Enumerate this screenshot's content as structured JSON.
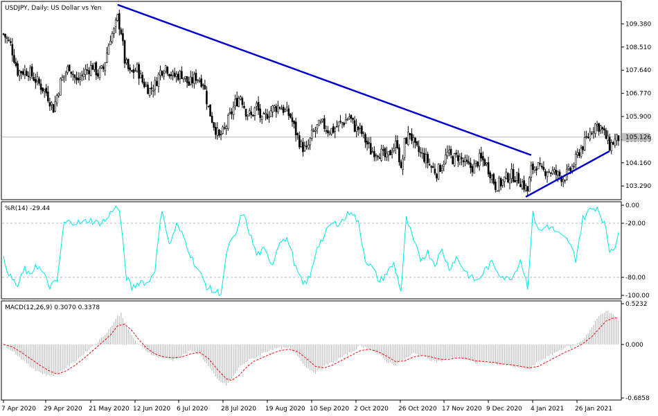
{
  "colors": {
    "background": "#ffffff",
    "frame": "#000000",
    "candle_up": "#ffffff",
    "candle_down": "#000000",
    "trendline": "#0000cd",
    "williams": "#00e5ee",
    "macd_hist": "#c0c0c0",
    "macd_signal": "#ff0000",
    "level_line": "#a0a0a0",
    "current_price_bg": "#c0c0c0"
  },
  "chart_data": {
    "type": "candlestick",
    "symbol_title": "USDJPY, Daily:  US Dollar vs Yen",
    "current_price_label": "105.126",
    "current_price": 105.126,
    "x_ticks": [
      "7 Apr 2020",
      "29 Apr 2020",
      "21 May 2020",
      "12 Jun 2020",
      "6 Jul 2020",
      "28 Jul 2020",
      "19 Aug 2020",
      "10 Sep 2020",
      "2 Oct 2020",
      "26 Oct 2020",
      "17 Nov 2020",
      "9 Dec 2020",
      "4 Jan 2021",
      "26 Jan 2021"
    ],
    "price_panel": {
      "ylim": [
        102.8,
        110.2
      ],
      "y_ticks": [
        "109.380",
        "108.510",
        "107.640",
        "106.770",
        "105.900",
        "105.030",
        "104.160",
        "103.290"
      ],
      "anchors": [
        [
          0,
          109.0
        ],
        [
          4,
          108.6
        ],
        [
          8,
          107.6
        ],
        [
          14,
          107.6
        ],
        [
          19,
          107.2
        ],
        [
          24,
          106.8
        ],
        [
          28,
          106.2
        ],
        [
          32,
          107.2
        ],
        [
          37,
          107.8
        ],
        [
          41,
          107.2
        ],
        [
          46,
          107.6
        ],
        [
          50,
          107.8
        ],
        [
          53,
          107.5
        ],
        [
          56,
          107.7
        ],
        [
          60,
          108.9
        ],
        [
          62,
          109.1
        ],
        [
          64,
          109.6
        ],
        [
          66,
          109.1
        ],
        [
          68,
          108.0
        ],
        [
          71,
          107.5
        ],
        [
          75,
          107.7
        ],
        [
          78,
          107.2
        ],
        [
          82,
          106.9
        ],
        [
          85,
          107.1
        ],
        [
          88,
          107.6
        ],
        [
          91,
          107.8
        ],
        [
          95,
          107.4
        ],
        [
          100,
          107.5
        ],
        [
          104,
          107.1
        ],
        [
          108,
          107.4
        ],
        [
          112,
          107.2
        ],
        [
          115,
          106.2
        ],
        [
          118,
          105.6
        ],
        [
          121,
          105.1
        ],
        [
          124,
          105.4
        ],
        [
          127,
          105.9
        ],
        [
          130,
          106.4
        ],
        [
          133,
          106.7
        ],
        [
          136,
          106.1
        ],
        [
          139,
          105.9
        ],
        [
          142,
          106.3
        ],
        [
          145,
          105.7
        ],
        [
          148,
          106.0
        ],
        [
          151,
          106.2
        ],
        [
          155,
          106.3
        ],
        [
          158,
          106.1
        ],
        [
          161,
          105.9
        ],
        [
          164,
          105.3
        ],
        [
          167,
          104.8
        ],
        [
          170,
          104.6
        ],
        [
          173,
          105.2
        ],
        [
          176,
          105.5
        ],
        [
          179,
          105.6
        ],
        [
          182,
          105.4
        ],
        [
          185,
          105.4
        ],
        [
          188,
          105.6
        ],
        [
          191,
          105.7
        ],
        [
          194,
          105.9
        ],
        [
          197,
          105.5
        ],
        [
          200,
          105.4
        ],
        [
          203,
          105.0
        ],
        [
          206,
          104.6
        ],
        [
          209,
          104.6
        ],
        [
          212,
          104.5
        ],
        [
          215,
          104.3
        ],
        [
          218,
          104.7
        ],
        [
          221,
          104.9
        ],
        [
          223,
          103.8
        ],
        [
          225,
          104.9
        ],
        [
          228,
          105.3
        ],
        [
          231,
          104.7
        ],
        [
          234,
          104.5
        ],
        [
          237,
          104.3
        ],
        [
          240,
          104.0
        ],
        [
          243,
          103.8
        ],
        [
          246,
          104.1
        ],
        [
          249,
          104.5
        ],
        [
          252,
          104.3
        ],
        [
          255,
          104.4
        ],
        [
          258,
          104.2
        ],
        [
          261,
          104.0
        ],
        [
          264,
          104.0
        ],
        [
          267,
          104.3
        ],
        [
          270,
          104.2
        ],
        [
          273,
          103.8
        ],
        [
          276,
          103.3
        ],
        [
          279,
          103.4
        ],
        [
          282,
          103.6
        ],
        [
          285,
          103.7
        ],
        [
          288,
          103.6
        ],
        [
          291,
          103.4
        ],
        [
          294,
          103.1
        ],
        [
          296,
          103.9
        ],
        [
          299,
          104.1
        ],
        [
          302,
          103.8
        ],
        [
          305,
          103.9
        ],
        [
          308,
          103.8
        ],
        [
          311,
          103.7
        ],
        [
          314,
          103.6
        ],
        [
          317,
          103.8
        ],
        [
          320,
          104.1
        ],
        [
          323,
          104.6
        ],
        [
          326,
          104.9
        ],
        [
          329,
          105.3
        ],
        [
          332,
          105.6
        ],
        [
          335,
          105.5
        ],
        [
          338,
          105.1
        ],
        [
          340,
          104.8
        ],
        [
          343,
          105.0
        ],
        [
          345,
          105.1
        ]
      ],
      "trendlines": [
        {
          "from": [
            64,
            110.1
          ],
          "to": [
            296,
            104.45
          ]
        },
        {
          "from": [
            293,
            102.88
          ],
          "to": [
            340,
            104.6
          ]
        }
      ]
    },
    "wpr_panel": {
      "label": "%R(14) -29.44",
      "ylim": [
        -100,
        0
      ],
      "y_ticks": [
        "0.00",
        "-20.00",
        "-80.00",
        "-100.00"
      ],
      "levels": [
        -20,
        -80
      ],
      "anchors": [
        [
          0,
          -60
        ],
        [
          4,
          -80
        ],
        [
          8,
          -90
        ],
        [
          12,
          -70
        ],
        [
          15,
          -80
        ],
        [
          18,
          -65
        ],
        [
          22,
          -75
        ],
        [
          26,
          -90
        ],
        [
          30,
          -85
        ],
        [
          34,
          -20
        ],
        [
          38,
          -18
        ],
        [
          44,
          -20
        ],
        [
          48,
          -16
        ],
        [
          53,
          -20
        ],
        [
          58,
          -16
        ],
        [
          62,
          -2
        ],
        [
          65,
          -5
        ],
        [
          69,
          -80
        ],
        [
          72,
          -92
        ],
        [
          77,
          -84
        ],
        [
          81,
          -87
        ],
        [
          85,
          -70
        ],
        [
          89,
          -3
        ],
        [
          93,
          -45
        ],
        [
          97,
          -22
        ],
        [
          101,
          -35
        ],
        [
          106,
          -60
        ],
        [
          110,
          -75
        ],
        [
          114,
          -90
        ],
        [
          118,
          -96
        ],
        [
          122,
          -97
        ],
        [
          126,
          -45
        ],
        [
          130,
          -35
        ],
        [
          134,
          -8
        ],
        [
          138,
          -30
        ],
        [
          142,
          -55
        ],
        [
          146,
          -50
        ],
        [
          151,
          -65
        ],
        [
          155,
          -38
        ],
        [
          160,
          -40
        ],
        [
          164,
          -70
        ],
        [
          168,
          -88
        ],
        [
          172,
          -80
        ],
        [
          176,
          -45
        ],
        [
          180,
          -35
        ],
        [
          183,
          -22
        ],
        [
          187,
          -20
        ],
        [
          191,
          -16
        ],
        [
          195,
          -5
        ],
        [
          199,
          -20
        ],
        [
          203,
          -60
        ],
        [
          207,
          -70
        ],
        [
          211,
          -85
        ],
        [
          215,
          -75
        ],
        [
          219,
          -65
        ],
        [
          223,
          -95
        ],
        [
          226,
          -15
        ],
        [
          230,
          -40
        ],
        [
          234,
          -60
        ],
        [
          238,
          -52
        ],
        [
          242,
          -65
        ],
        [
          246,
          -50
        ],
        [
          250,
          -70
        ],
        [
          254,
          -58
        ],
        [
          258,
          -70
        ],
        [
          262,
          -80
        ],
        [
          266,
          -84
        ],
        [
          270,
          -72
        ],
        [
          274,
          -64
        ],
        [
          278,
          -75
        ],
        [
          282,
          -82
        ],
        [
          286,
          -78
        ],
        [
          290,
          -60
        ],
        [
          294,
          -90
        ],
        [
          297,
          -10
        ],
        [
          301,
          -30
        ],
        [
          305,
          -22
        ],
        [
          309,
          -28
        ],
        [
          313,
          -35
        ],
        [
          317,
          -40
        ],
        [
          321,
          -60
        ],
        [
          325,
          -15
        ],
        [
          329,
          -5
        ],
        [
          333,
          -2
        ],
        [
          337,
          -20
        ],
        [
          340,
          -50
        ],
        [
          343,
          -45
        ],
        [
          345,
          -30
        ]
      ]
    },
    "macd_panel": {
      "label": "MACD(12,26,9) 0.3070 0.3378",
      "ylim": [
        -0.6858,
        0.5232
      ],
      "y_ticks": [
        "0.5232",
        "0.000",
        "-0.6858"
      ],
      "main_anchors": [
        [
          0,
          0.0
        ],
        [
          5,
          -0.08
        ],
        [
          10,
          -0.18
        ],
        [
          15,
          -0.28
        ],
        [
          20,
          -0.35
        ],
        [
          25,
          -0.4
        ],
        [
          30,
          -0.38
        ],
        [
          35,
          -0.3
        ],
        [
          40,
          -0.22
        ],
        [
          45,
          -0.12
        ],
        [
          50,
          -0.02
        ],
        [
          55,
          0.08
        ],
        [
          60,
          0.22
        ],
        [
          64,
          0.36
        ],
        [
          66,
          0.4
        ],
        [
          70,
          0.18
        ],
        [
          75,
          0.02
        ],
        [
          80,
          -0.08
        ],
        [
          85,
          -0.15
        ],
        [
          90,
          -0.18
        ],
        [
          95,
          -0.2
        ],
        [
          100,
          -0.15
        ],
        [
          105,
          -0.08
        ],
        [
          110,
          -0.12
        ],
        [
          115,
          -0.28
        ],
        [
          120,
          -0.45
        ],
        [
          125,
          -0.52
        ],
        [
          128,
          -0.45
        ],
        [
          132,
          -0.3
        ],
        [
          136,
          -0.22
        ],
        [
          140,
          -0.18
        ],
        [
          145,
          -0.12
        ],
        [
          150,
          -0.06
        ],
        [
          155,
          -0.05
        ],
        [
          160,
          -0.05
        ],
        [
          165,
          -0.14
        ],
        [
          170,
          -0.3
        ],
        [
          175,
          -0.36
        ],
        [
          180,
          -0.28
        ],
        [
          185,
          -0.22
        ],
        [
          190,
          -0.16
        ],
        [
          195,
          -0.1
        ],
        [
          200,
          -0.02
        ],
        [
          205,
          -0.05
        ],
        [
          210,
          -0.12
        ],
        [
          215,
          -0.22
        ],
        [
          220,
          -0.26
        ],
        [
          225,
          -0.18
        ],
        [
          230,
          -0.12
        ],
        [
          235,
          -0.14
        ],
        [
          240,
          -0.2
        ],
        [
          245,
          -0.22
        ],
        [
          250,
          -0.18
        ],
        [
          255,
          -0.16
        ],
        [
          260,
          -0.2
        ],
        [
          265,
          -0.24
        ],
        [
          270,
          -0.22
        ],
        [
          275,
          -0.24
        ],
        [
          280,
          -0.26
        ],
        [
          285,
          -0.28
        ],
        [
          290,
          -0.3
        ],
        [
          295,
          -0.32
        ],
        [
          300,
          -0.22
        ],
        [
          305,
          -0.16
        ],
        [
          310,
          -0.1
        ],
        [
          315,
          -0.04
        ],
        [
          320,
          -0.02
        ],
        [
          325,
          0.06
        ],
        [
          330,
          0.22
        ],
        [
          334,
          0.36
        ],
        [
          338,
          0.44
        ],
        [
          342,
          0.38
        ],
        [
          345,
          0.31
        ]
      ],
      "signal_anchors": [
        [
          0,
          0.0
        ],
        [
          5,
          -0.03
        ],
        [
          10,
          -0.1
        ],
        [
          15,
          -0.18
        ],
        [
          20,
          -0.26
        ],
        [
          25,
          -0.33
        ],
        [
          30,
          -0.38
        ],
        [
          35,
          -0.34
        ],
        [
          40,
          -0.27
        ],
        [
          45,
          -0.18
        ],
        [
          50,
          -0.08
        ],
        [
          55,
          0.02
        ],
        [
          60,
          0.12
        ],
        [
          64,
          0.24
        ],
        [
          68,
          0.26
        ],
        [
          72,
          0.18
        ],
        [
          76,
          0.06
        ],
        [
          80,
          -0.04
        ],
        [
          85,
          -0.12
        ],
        [
          90,
          -0.16
        ],
        [
          95,
          -0.17
        ],
        [
          100,
          -0.16
        ],
        [
          105,
          -0.12
        ],
        [
          110,
          -0.1
        ],
        [
          115,
          -0.18
        ],
        [
          120,
          -0.32
        ],
        [
          125,
          -0.44
        ],
        [
          128,
          -0.46
        ],
        [
          132,
          -0.4
        ],
        [
          136,
          -0.3
        ],
        [
          140,
          -0.22
        ],
        [
          145,
          -0.17
        ],
        [
          150,
          -0.12
        ],
        [
          155,
          -0.08
        ],
        [
          160,
          -0.06
        ],
        [
          165,
          -0.09
        ],
        [
          170,
          -0.18
        ],
        [
          175,
          -0.28
        ],
        [
          180,
          -0.3
        ],
        [
          185,
          -0.26
        ],
        [
          190,
          -0.2
        ],
        [
          195,
          -0.14
        ],
        [
          200,
          -0.08
        ],
        [
          205,
          -0.06
        ],
        [
          210,
          -0.09
        ],
        [
          215,
          -0.15
        ],
        [
          220,
          -0.22
        ],
        [
          225,
          -0.21
        ],
        [
          230,
          -0.16
        ],
        [
          235,
          -0.14
        ],
        [
          240,
          -0.16
        ],
        [
          245,
          -0.19
        ],
        [
          250,
          -0.19
        ],
        [
          255,
          -0.17
        ],
        [
          260,
          -0.18
        ],
        [
          265,
          -0.21
        ],
        [
          270,
          -0.22
        ],
        [
          275,
          -0.23
        ],
        [
          280,
          -0.25
        ],
        [
          285,
          -0.26
        ],
        [
          290,
          -0.28
        ],
        [
          295,
          -0.3
        ],
        [
          300,
          -0.28
        ],
        [
          305,
          -0.22
        ],
        [
          310,
          -0.16
        ],
        [
          315,
          -0.1
        ],
        [
          320,
          -0.05
        ],
        [
          325,
          0.01
        ],
        [
          330,
          0.1
        ],
        [
          334,
          0.2
        ],
        [
          338,
          0.3
        ],
        [
          342,
          0.34
        ],
        [
          345,
          0.34
        ]
      ]
    }
  }
}
